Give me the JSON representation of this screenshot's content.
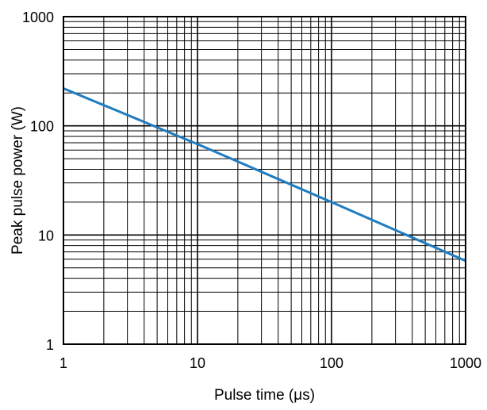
{
  "chart_data": {
    "type": "line",
    "xlabel": "Pulse time (μs)",
    "ylabel": "Peak pulse power (W)",
    "xscale": "log",
    "yscale": "log",
    "xlim": [
      1,
      1000
    ],
    "ylim": [
      1,
      1000
    ],
    "grid": true,
    "xticks": [
      {
        "value": 1,
        "label": "1"
      },
      {
        "value": 10,
        "label": "10"
      },
      {
        "value": 100,
        "label": "100"
      },
      {
        "value": 1000,
        "label": "1000"
      }
    ],
    "yticks": [
      {
        "value": 1,
        "label": "1"
      },
      {
        "value": 10,
        "label": "10"
      },
      {
        "value": 100,
        "label": "100"
      },
      {
        "value": 1000,
        "label": "1000"
      }
    ],
    "series": [
      {
        "color": "#1f7cc1",
        "x": [
          1,
          10,
          100,
          1000
        ],
        "y": [
          220,
          68,
          20,
          5.8
        ]
      }
    ]
  }
}
